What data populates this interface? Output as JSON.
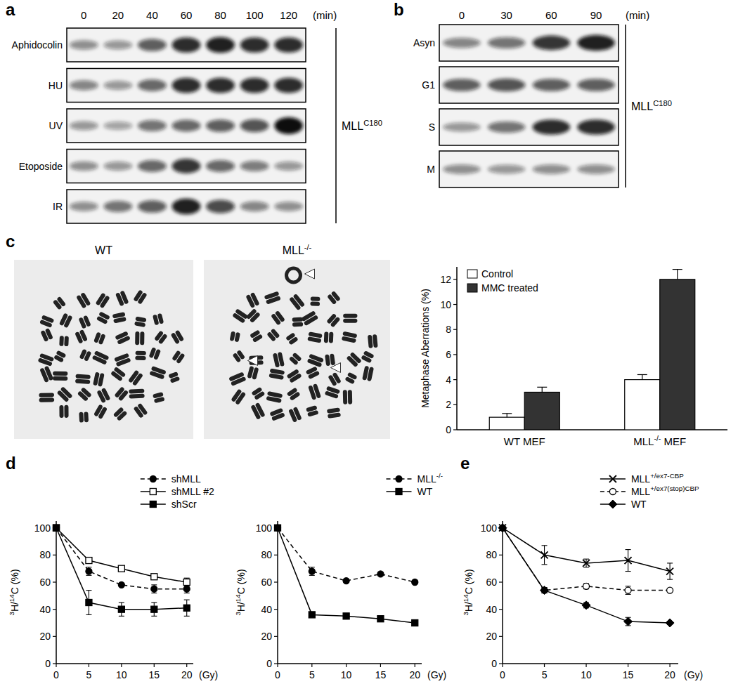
{
  "panel_labels": [
    "a",
    "b",
    "c",
    "d",
    "e"
  ],
  "blots": [
    {
      "time_unit": "(min)",
      "times": [
        0,
        20,
        40,
        60,
        80,
        100,
        120
      ],
      "protein": "MLLC180",
      "rows": [
        {
          "label": "Aphidocolin",
          "intensity": [
            0.35,
            0.3,
            0.6,
            0.85,
            0.9,
            0.85,
            0.85
          ]
        },
        {
          "label": "HU",
          "intensity": [
            0.4,
            0.3,
            0.55,
            0.85,
            0.85,
            0.85,
            0.85
          ]
        },
        {
          "label": "UV",
          "intensity": [
            0.3,
            0.25,
            0.5,
            0.55,
            0.6,
            0.65,
            1.0
          ]
        },
        {
          "label": "Etoposide",
          "intensity": [
            0.35,
            0.3,
            0.55,
            0.8,
            0.55,
            0.45,
            0.3
          ]
        },
        {
          "label": "IR",
          "intensity": [
            0.35,
            0.5,
            0.6,
            0.9,
            0.7,
            0.4,
            0.35
          ]
        }
      ]
    },
    {
      "time_unit": "(min)",
      "times": [
        0,
        30,
        60,
        90
      ],
      "protein": "MLLC180",
      "rows": [
        {
          "label": "Asyn",
          "intensity": [
            0.4,
            0.5,
            0.8,
            0.9
          ]
        },
        {
          "label": "G1",
          "intensity": [
            0.6,
            0.65,
            0.6,
            0.6
          ]
        },
        {
          "label": "S",
          "intensity": [
            0.3,
            0.5,
            0.85,
            0.85
          ]
        },
        {
          "label": "M",
          "intensity": [
            0.35,
            0.3,
            0.35,
            0.35
          ]
        }
      ]
    }
  ],
  "micrographs": [
    {
      "label": "WT"
    },
    {
      "label": "MLL-/-"
    }
  ],
  "chart_data": [
    {
      "type": "bar",
      "categories": [
        "WT MEF",
        "MLL-/- MEF"
      ],
      "y_label": "Metaphase Aberrations (%)",
      "ylim": [
        0,
        13
      ],
      "yticks": [
        0,
        2,
        4,
        6,
        8,
        10,
        12
      ],
      "legend": "top-left",
      "series": [
        {
          "name": "Control",
          "color": "#ffffff",
          "values": [
            1.0,
            4.0
          ],
          "errors": [
            0.3,
            0.4
          ]
        },
        {
          "name": "MMC treated",
          "color": "#333333",
          "values": [
            3.0,
            12.0
          ],
          "errors": [
            0.4,
            0.8
          ]
        }
      ]
    },
    {
      "type": "line",
      "x": [
        0,
        5,
        10,
        15,
        20
      ],
      "xlim": [
        0,
        21
      ],
      "xticks": [
        0,
        5,
        10,
        15,
        20
      ],
      "x_label": "(Gy)",
      "y_label": "3H/14C (%)",
      "ylim": [
        0,
        105
      ],
      "yticks": [
        0,
        20,
        40,
        60,
        80,
        100
      ],
      "legend": "top-right",
      "series": [
        {
          "name": "shMLL",
          "color": "#000000",
          "marker": "circle",
          "line_style": "dashed",
          "values": [
            100,
            68,
            58,
            55,
            55
          ],
          "errors": [
            0,
            3,
            1,
            3,
            3
          ]
        },
        {
          "name": "shMLL #2",
          "color": "#000000",
          "marker": "square-open",
          "line_style": "solid",
          "values": [
            100,
            76,
            70,
            64,
            60
          ],
          "errors": [
            0,
            2,
            1,
            2,
            3
          ]
        },
        {
          "name": "shScr",
          "color": "#000000",
          "marker": "square",
          "line_style": "solid",
          "values": [
            100,
            45,
            40,
            40,
            41
          ],
          "errors": [
            0,
            9,
            5,
            5,
            6
          ]
        }
      ]
    },
    {
      "type": "line",
      "x": [
        0,
        5,
        10,
        15,
        20
      ],
      "xlim": [
        0,
        21
      ],
      "xticks": [
        0,
        5,
        10,
        15,
        20
      ],
      "x_label": "(Gy)",
      "y_label": "3H/14C (%)",
      "ylim": [
        0,
        105
      ],
      "yticks": [
        0,
        20,
        40,
        60,
        80,
        100
      ],
      "legend": "top-right",
      "series": [
        {
          "name": "MLL-/-",
          "color": "#000000",
          "marker": "circle",
          "line_style": "dashed",
          "values": [
            100,
            68,
            61,
            66,
            60
          ],
          "errors": [
            0,
            3,
            1,
            1,
            1
          ]
        },
        {
          "name": "WT",
          "color": "#000000",
          "marker": "square",
          "line_style": "solid",
          "values": [
            100,
            36,
            35,
            33,
            30
          ],
          "errors": [
            0,
            1,
            1,
            1,
            1
          ]
        }
      ]
    },
    {
      "type": "line",
      "x": [
        0,
        5,
        10,
        15,
        20
      ],
      "xlim": [
        0,
        21
      ],
      "xticks": [
        0,
        5,
        10,
        15,
        20
      ],
      "x_label": "(Gy)",
      "y_label": "3H/14C (%)",
      "ylim": [
        0,
        105
      ],
      "yticks": [
        0,
        20,
        40,
        60,
        80,
        100
      ],
      "legend": "top-right",
      "series": [
        {
          "name": "MLL+/ex7-CBP",
          "color": "#000000",
          "marker": "x",
          "line_style": "solid",
          "values": [
            100,
            80,
            74,
            76,
            68
          ],
          "errors": [
            0,
            7,
            3,
            8,
            6
          ]
        },
        {
          "name": "MLL+/ex7(stop)CBP",
          "color": "#000000",
          "marker": "circle-open",
          "line_style": "dashed",
          "values": [
            100,
            54,
            57,
            54,
            54
          ],
          "errors": [
            0,
            2,
            2,
            3,
            1
          ]
        },
        {
          "name": "WT",
          "color": "#000000",
          "marker": "diamond",
          "line_style": "solid",
          "values": [
            100,
            54,
            43,
            31,
            30
          ],
          "errors": [
            0,
            2,
            2,
            3,
            1
          ]
        }
      ]
    }
  ]
}
